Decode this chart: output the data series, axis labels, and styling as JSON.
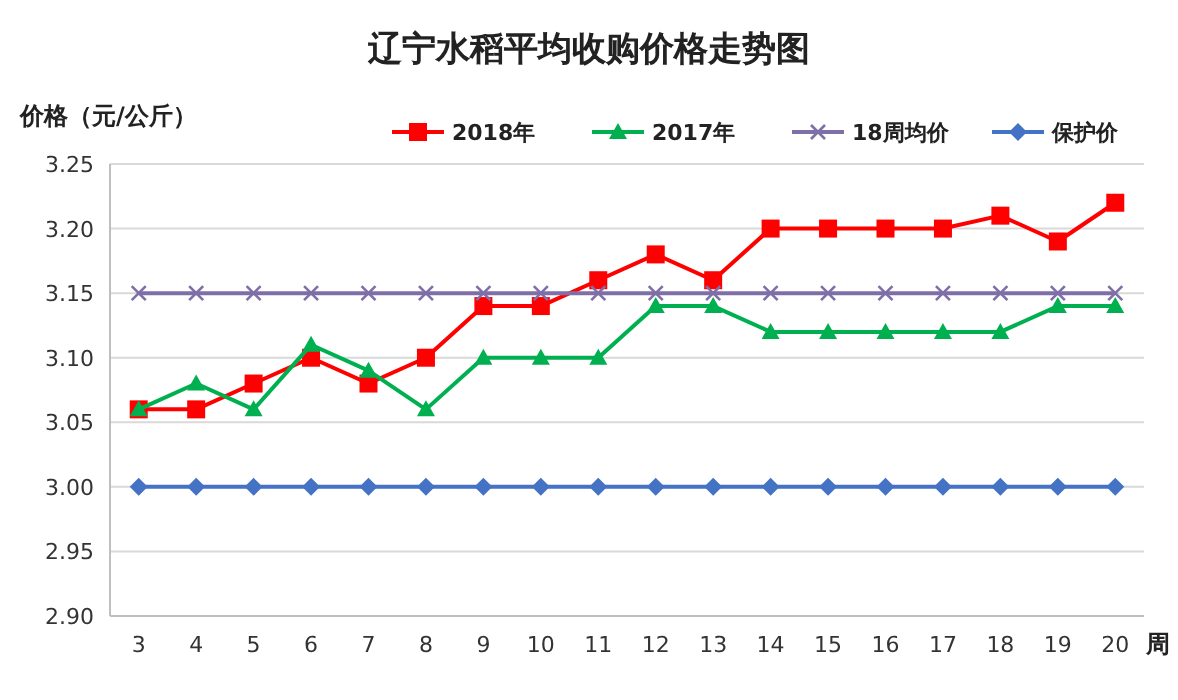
{
  "chart_data": {
    "type": "line",
    "title": "辽宁水稻平均收购价格走势图",
    "ylabel": "价格（元/公斤）",
    "xlabel": "周",
    "categories": [
      "3",
      "4",
      "5",
      "6",
      "7",
      "8",
      "9",
      "10",
      "11",
      "12",
      "13",
      "14",
      "15",
      "16",
      "17",
      "18",
      "19",
      "20"
    ],
    "series": [
      {
        "name": "2018年",
        "color": "#ff0000",
        "marker": "square",
        "values": [
          3.06,
          3.06,
          3.08,
          3.1,
          3.08,
          3.1,
          3.14,
          3.14,
          3.16,
          3.18,
          3.16,
          3.2,
          3.2,
          3.2,
          3.2,
          3.21,
          3.19,
          3.22
        ]
      },
      {
        "name": "2017年",
        "color": "#00b050",
        "marker": "triangle",
        "values": [
          3.06,
          3.08,
          3.06,
          3.11,
          3.09,
          3.06,
          3.1,
          3.1,
          3.1,
          3.14,
          3.14,
          3.12,
          3.12,
          3.12,
          3.12,
          3.12,
          3.14,
          3.14
        ]
      },
      {
        "name": "18周均价",
        "color": "#7f6fa8",
        "marker": "cross",
        "values": [
          3.15,
          3.15,
          3.15,
          3.15,
          3.15,
          3.15,
          3.15,
          3.15,
          3.15,
          3.15,
          3.15,
          3.15,
          3.15,
          3.15,
          3.15,
          3.15,
          3.15,
          3.15
        ]
      },
      {
        "name": "保护价",
        "color": "#4472c4",
        "marker": "diamond",
        "values": [
          3.0,
          3.0,
          3.0,
          3.0,
          3.0,
          3.0,
          3.0,
          3.0,
          3.0,
          3.0,
          3.0,
          3.0,
          3.0,
          3.0,
          3.0,
          3.0,
          3.0,
          3.0
        ]
      }
    ],
    "ylim": [
      2.9,
      3.25
    ],
    "yticks": [
      {
        "value": 2.9,
        "label": "2.90"
      },
      {
        "value": 2.95,
        "label": "2.95"
      },
      {
        "value": 3.0,
        "label": "3.00"
      },
      {
        "value": 3.05,
        "label": "3.05"
      },
      {
        "value": 3.1,
        "label": "3.10"
      },
      {
        "value": 3.15,
        "label": "3.15"
      },
      {
        "value": 3.2,
        "label": "3.20"
      },
      {
        "value": 3.25,
        "label": "3.25"
      }
    ],
    "grid": "y",
    "legend": "top right",
    "line_style": "solid"
  }
}
